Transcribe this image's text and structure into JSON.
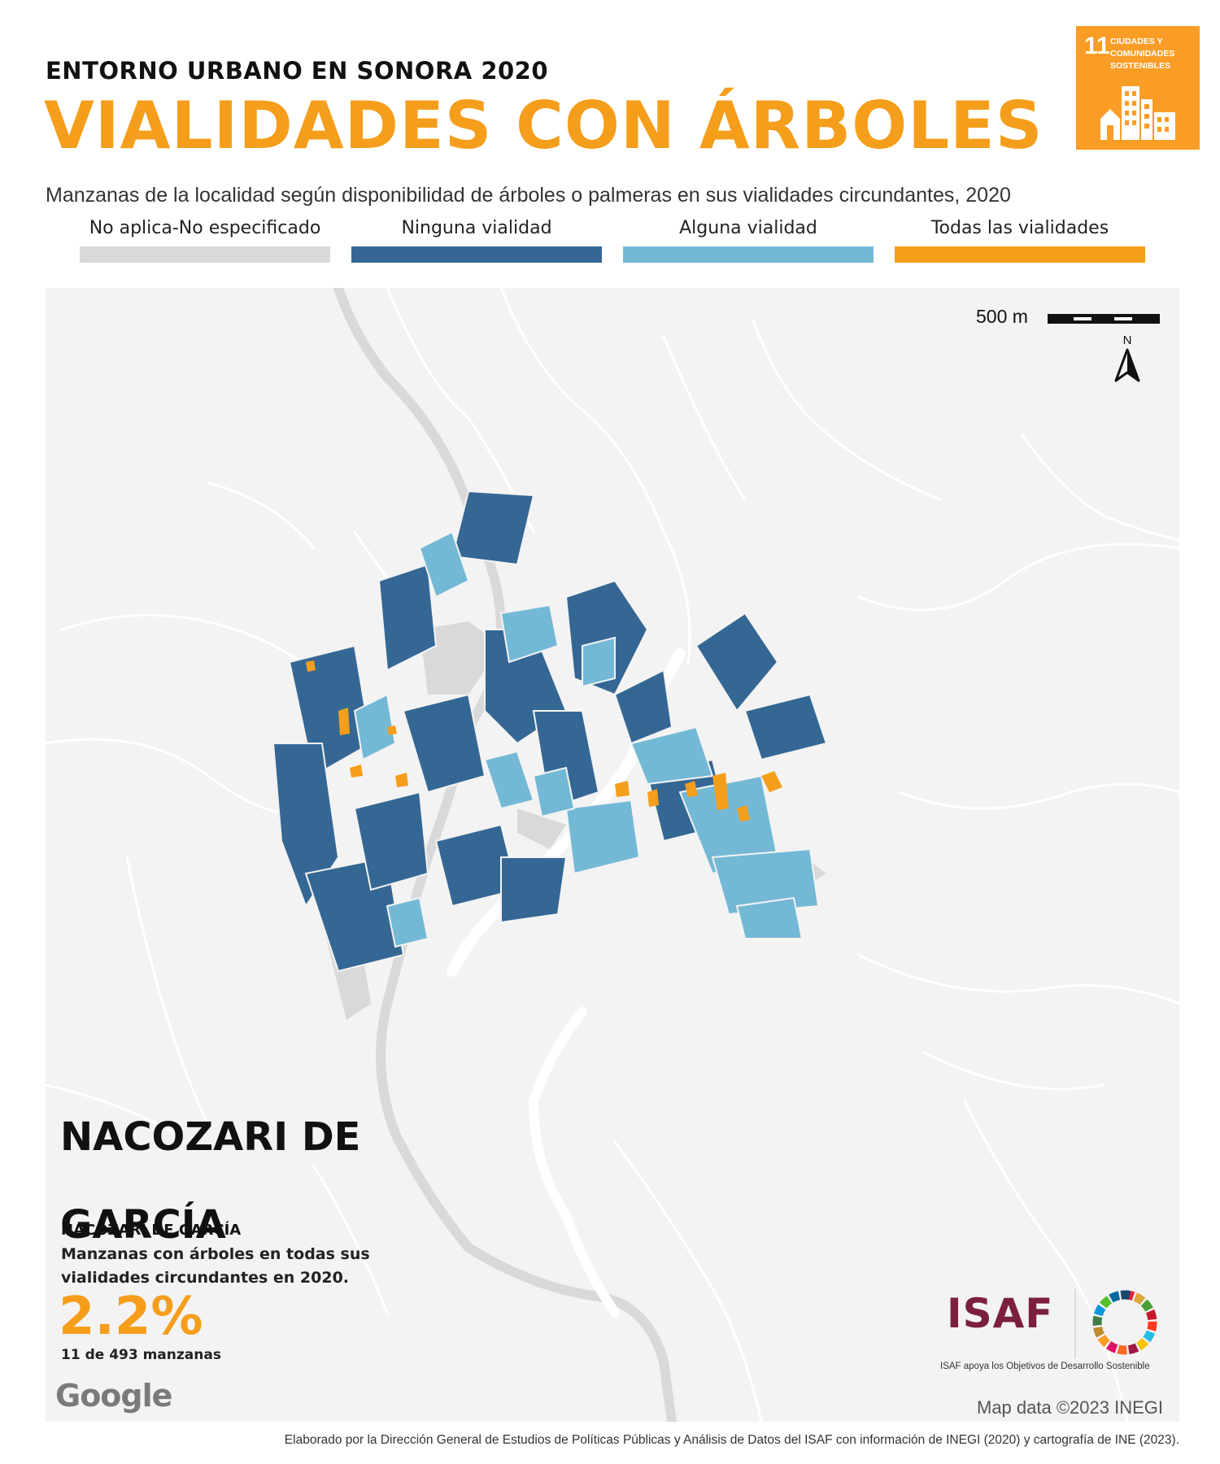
{
  "header": {
    "kicker": "ENTORNO URBANO EN SONORA 2020",
    "title": "VIALIDADES CON ÁRBOLES",
    "subtitle": "Manzanas de la localidad según disponibilidad de árboles o palmeras en sus vialidades circundantes, 2020"
  },
  "sdg_badge": {
    "number": "11",
    "text_lines": [
      "CIUDADES Y",
      "COMUNIDADES",
      "SOSTENIBLES"
    ],
    "color": "#F99D26",
    "icon": "city-buildings-icon"
  },
  "legend": [
    {
      "label": "No aplica-No especificado",
      "color": "#D9D9D9"
    },
    {
      "label": "Ninguna vialidad",
      "color": "#356794"
    },
    {
      "label": "Alguna vialidad",
      "color": "#73B9D6"
    },
    {
      "label": "Todas las vialidades",
      "color": "#F59E1B"
    }
  ],
  "map": {
    "scale_label": "500 m",
    "north_label": "N",
    "north_icon": "north-arrow-icon",
    "background_color": "#F3F3F3",
    "road_color": "#FFFFFF",
    "highway_color": "#DADADA"
  },
  "place": {
    "name": "NACOZARI DE GARCÍA",
    "municipality": "NACOZARI DE GARCÍA"
  },
  "stat": {
    "description": "Manzanas con árboles en todas sus vialidades circundantes en 2020.",
    "value": "2.2%",
    "count_label": "11 de 493 manzanas"
  },
  "branding": {
    "google_logo": "Google",
    "isaf_logo": "ISAF",
    "isaf_caption": "ISAF apoya los Objetivos de Desarrollo Sostenible",
    "sdg_wheel_icon": "sdg-wheel-icon",
    "isaf_color": "#7B1F3D"
  },
  "attribution": "Map data ©2023 INEGI",
  "footer": "Elaborado por la Dirección General de Estudios de Políticas Públicas y Análisis de Datos del ISAF con información de INEGI (2020) y cartografía de INE (2023)."
}
